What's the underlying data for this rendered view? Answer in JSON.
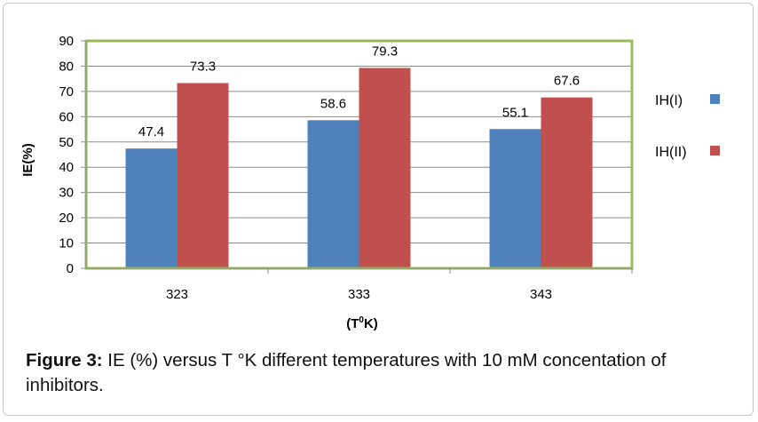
{
  "chart_data": {
    "type": "bar",
    "categories": [
      "323",
      "333",
      "343"
    ],
    "series": [
      {
        "name": "IH(I)",
        "values": [
          47.4,
          58.6,
          55.1
        ],
        "color": "#4f81bd"
      },
      {
        "name": "IH(II)",
        "values": [
          73.3,
          79.3,
          67.6
        ],
        "color": "#c0504d"
      }
    ],
    "data_labels": [
      [
        "47.4",
        "58.6",
        "55.1"
      ],
      [
        "73.3",
        "79.3",
        "67.6"
      ]
    ],
    "ylim": [
      0,
      90
    ],
    "yticks": [
      "0",
      "10",
      "20",
      "30",
      "40",
      "50",
      "60",
      "70",
      "80",
      "90"
    ],
    "ylabel": "IE(%)",
    "xlabel_main": "(T",
    "xlabel_sup": "0",
    "xlabel_end": "K)",
    "legend_position": "right",
    "plot_border_color": "#9bbb59",
    "grid": true
  },
  "caption": {
    "label": "Figure 3:",
    "text": " IE (%) versus T °K different temperatures with 10 mM concentation of inhibitors."
  }
}
